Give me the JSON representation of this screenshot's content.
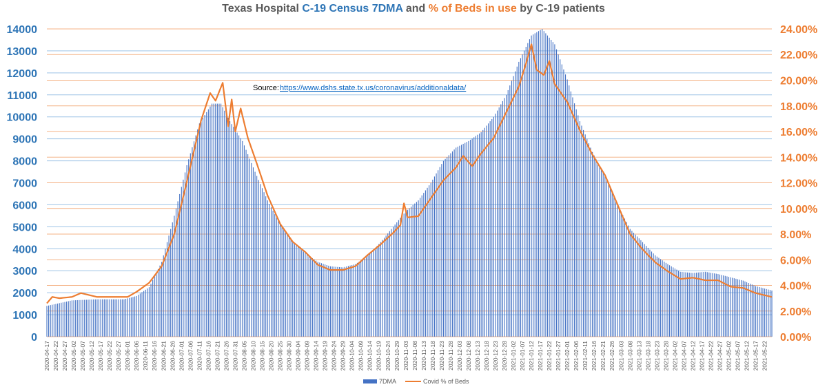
{
  "chart_data": {
    "type": "bar+line",
    "title": {
      "part1": "Texas Hospital ",
      "part2": "C-19 Census 7DMA",
      "part3": " and ",
      "part4": "% of Beds in use",
      "part5": " by C-19 patients"
    },
    "source_label": "Source:",
    "source_url": "https://www.dshs.state.tx.us/coronavirus/additionaldata/",
    "left_axis": {
      "ylim": [
        0,
        14000
      ],
      "ticks": [
        "0",
        "1000",
        "2000",
        "3000",
        "4000",
        "5000",
        "6000",
        "7000",
        "8000",
        "9000",
        "10000",
        "11000",
        "12000",
        "13000",
        "14000"
      ]
    },
    "right_axis": {
      "ylim": [
        0,
        0.24
      ],
      "ticks": [
        "0.00%",
        "2.00%",
        "4.00%",
        "6.00%",
        "8.00%",
        "10.00%",
        "12.00%",
        "14.00%",
        "16.00%",
        "18.00%",
        "20.00%",
        "22.00%",
        "24.00%"
      ]
    },
    "x_start_date": "2020-04-17",
    "x_end_date": "2021-05-26",
    "x_tick_labels": [
      "2020-04-17",
      "2020-04-22",
      "2020-04-27",
      "2020-05-02",
      "2020-05-07",
      "2020-05-12",
      "2020-05-17",
      "2020-05-22",
      "2020-05-27",
      "2020-06-01",
      "2020-06-06",
      "2020-06-11",
      "2020-06-16",
      "2020-06-21",
      "2020-06-26",
      "2020-07-01",
      "2020-07-06",
      "2020-07-11",
      "2020-07-16",
      "2020-07-21",
      "2020-07-26",
      "2020-07-31",
      "2020-08-05",
      "2020-08-10",
      "2020-08-15",
      "2020-08-20",
      "2020-08-25",
      "2020-08-30",
      "2020-09-04",
      "2020-09-09",
      "2020-09-14",
      "2020-09-19",
      "2020-09-24",
      "2020-09-29",
      "2020-10-04",
      "2020-10-09",
      "2020-10-14",
      "2020-10-19",
      "2020-10-24",
      "2020-10-29",
      "2020-11-03",
      "2020-11-08",
      "2020-11-13",
      "2020-11-18",
      "2020-11-23",
      "2020-11-28",
      "2020-12-03",
      "2020-12-08",
      "2020-12-13",
      "2020-12-18",
      "2020-12-23",
      "2020-12-28",
      "2021-01-02",
      "2021-01-07",
      "2021-01-12",
      "2021-01-17",
      "2021-01-22",
      "2021-01-27",
      "2021-02-01",
      "2021-02-06",
      "2021-02-11",
      "2021-02-16",
      "2021-02-21",
      "2021-02-26",
      "2021-03-03",
      "2021-03-08",
      "2021-03-13",
      "2021-03-18",
      "2021-03-23",
      "2021-03-28",
      "2021-04-02",
      "2021-04-07",
      "2021-04-12",
      "2021-04-17",
      "2021-04-22",
      "2021-04-27",
      "2021-05-02",
      "2021-05-07",
      "2021-05-12",
      "2021-05-17",
      "2021-05-22"
    ],
    "series": [
      {
        "name": "7DMA",
        "axis": "left",
        "color": "#4472c4",
        "points": [
          [
            "2020-04-17",
            1400
          ],
          [
            "2020-05-01",
            1650
          ],
          [
            "2020-05-15",
            1700
          ],
          [
            "2020-05-30",
            1700
          ],
          [
            "2020-06-06",
            1850
          ],
          [
            "2020-06-13",
            2250
          ],
          [
            "2020-06-20",
            3400
          ],
          [
            "2020-06-27",
            5500
          ],
          [
            "2020-07-04",
            7800
          ],
          [
            "2020-07-11",
            9700
          ],
          [
            "2020-07-18",
            10600
          ],
          [
            "2020-07-23",
            10600
          ],
          [
            "2020-07-28",
            9800
          ],
          [
            "2020-08-04",
            8900
          ],
          [
            "2020-08-11",
            7500
          ],
          [
            "2020-08-18",
            6200
          ],
          [
            "2020-08-25",
            5100
          ],
          [
            "2020-09-01",
            4300
          ],
          [
            "2020-09-08",
            3800
          ],
          [
            "2020-09-15",
            3400
          ],
          [
            "2020-09-22",
            3200
          ],
          [
            "2020-09-29",
            3150
          ],
          [
            "2020-10-06",
            3300
          ],
          [
            "2020-10-13",
            3700
          ],
          [
            "2020-10-20",
            4300
          ],
          [
            "2020-10-27",
            5000
          ],
          [
            "2020-11-03",
            5700
          ],
          [
            "2020-11-10",
            6200
          ],
          [
            "2020-11-17",
            7000
          ],
          [
            "2020-11-24",
            8000
          ],
          [
            "2020-12-01",
            8600
          ],
          [
            "2020-12-08",
            8900
          ],
          [
            "2020-12-15",
            9300
          ],
          [
            "2020-12-22",
            10000
          ],
          [
            "2020-12-29",
            11000
          ],
          [
            "2021-01-05",
            12500
          ],
          [
            "2021-01-12",
            13700
          ],
          [
            "2021-01-18",
            14000
          ],
          [
            "2021-01-25",
            13300
          ],
          [
            "2021-02-01",
            11700
          ],
          [
            "2021-02-08",
            9800
          ],
          [
            "2021-02-15",
            8400
          ],
          [
            "2021-02-22",
            7300
          ],
          [
            "2021-03-01",
            6000
          ],
          [
            "2021-03-08",
            4900
          ],
          [
            "2021-03-15",
            4300
          ],
          [
            "2021-03-22",
            3700
          ],
          [
            "2021-03-29",
            3300
          ],
          [
            "2021-04-05",
            2950
          ],
          [
            "2021-04-12",
            2900
          ],
          [
            "2021-04-19",
            2950
          ],
          [
            "2021-04-26",
            2850
          ],
          [
            "2021-05-03",
            2700
          ],
          [
            "2021-05-10",
            2550
          ],
          [
            "2021-05-17",
            2300
          ],
          [
            "2021-05-26",
            2100
          ]
        ]
      },
      {
        "name": "Covid % of Beds",
        "axis": "right",
        "color": "#ed7d31",
        "points": [
          [
            "2020-04-17",
            0.026
          ],
          [
            "2020-04-20",
            0.031
          ],
          [
            "2020-04-24",
            0.03
          ],
          [
            "2020-05-01",
            0.031
          ],
          [
            "2020-05-06",
            0.034
          ],
          [
            "2020-05-15",
            0.031
          ],
          [
            "2020-05-25",
            0.031
          ],
          [
            "2020-06-01",
            0.031
          ],
          [
            "2020-06-06",
            0.035
          ],
          [
            "2020-06-13",
            0.042
          ],
          [
            "2020-06-20",
            0.055
          ],
          [
            "2020-06-27",
            0.08
          ],
          [
            "2020-07-03",
            0.115
          ],
          [
            "2020-07-08",
            0.145
          ],
          [
            "2020-07-12",
            0.169
          ],
          [
            "2020-07-17",
            0.19
          ],
          [
            "2020-07-20",
            0.184
          ],
          [
            "2020-07-24",
            0.198
          ],
          [
            "2020-07-27",
            0.164
          ],
          [
            "2020-07-29",
            0.185
          ],
          [
            "2020-07-31",
            0.16
          ],
          [
            "2020-08-03",
            0.178
          ],
          [
            "2020-08-07",
            0.155
          ],
          [
            "2020-08-12",
            0.135
          ],
          [
            "2020-08-18",
            0.11
          ],
          [
            "2020-08-25",
            0.088
          ],
          [
            "2020-09-01",
            0.074
          ],
          [
            "2020-09-08",
            0.066
          ],
          [
            "2020-09-15",
            0.056
          ],
          [
            "2020-09-22",
            0.052
          ],
          [
            "2020-09-29",
            0.052
          ],
          [
            "2020-10-06",
            0.055
          ],
          [
            "2020-10-13",
            0.064
          ],
          [
            "2020-10-20",
            0.072
          ],
          [
            "2020-10-27",
            0.081
          ],
          [
            "2020-10-31",
            0.087
          ],
          [
            "2020-11-02",
            0.104
          ],
          [
            "2020-11-04",
            0.093
          ],
          [
            "2020-11-10",
            0.094
          ],
          [
            "2020-11-17",
            0.108
          ],
          [
            "2020-11-24",
            0.122
          ],
          [
            "2020-12-01",
            0.132
          ],
          [
            "2020-12-05",
            0.141
          ],
          [
            "2020-12-10",
            0.133
          ],
          [
            "2020-12-15",
            0.143
          ],
          [
            "2020-12-22",
            0.155
          ],
          [
            "2020-12-29",
            0.175
          ],
          [
            "2021-01-05",
            0.195
          ],
          [
            "2021-01-09",
            0.213
          ],
          [
            "2021-01-12",
            0.228
          ],
          [
            "2021-01-15",
            0.208
          ],
          [
            "2021-01-19",
            0.204
          ],
          [
            "2021-01-22",
            0.215
          ],
          [
            "2021-01-25",
            0.197
          ],
          [
            "2021-02-01",
            0.183
          ],
          [
            "2021-02-08",
            0.161
          ],
          [
            "2021-02-15",
            0.142
          ],
          [
            "2021-02-22",
            0.126
          ],
          [
            "2021-03-01",
            0.103
          ],
          [
            "2021-03-08",
            0.08
          ],
          [
            "2021-03-15",
            0.068
          ],
          [
            "2021-03-22",
            0.058
          ],
          [
            "2021-03-29",
            0.051
          ],
          [
            "2021-04-05",
            0.045
          ],
          [
            "2021-04-12",
            0.046
          ],
          [
            "2021-04-19",
            0.044
          ],
          [
            "2021-04-26",
            0.044
          ],
          [
            "2021-05-03",
            0.039
          ],
          [
            "2021-05-10",
            0.038
          ],
          [
            "2021-05-17",
            0.034
          ],
          [
            "2021-05-26",
            0.031
          ]
        ]
      }
    ],
    "legend": [
      {
        "label": "7DMA",
        "color": "#4472c4"
      },
      {
        "label": "Covid % of Beds",
        "color": "#ed7d31"
      }
    ],
    "legend_position": "bottom",
    "grid": true,
    "colors": {
      "left_axis_text": "#2e75b6",
      "right_axis_text": "#ed7d31",
      "grid_blue": "#9dc3e6",
      "grid_orange": "#f4b183"
    }
  }
}
